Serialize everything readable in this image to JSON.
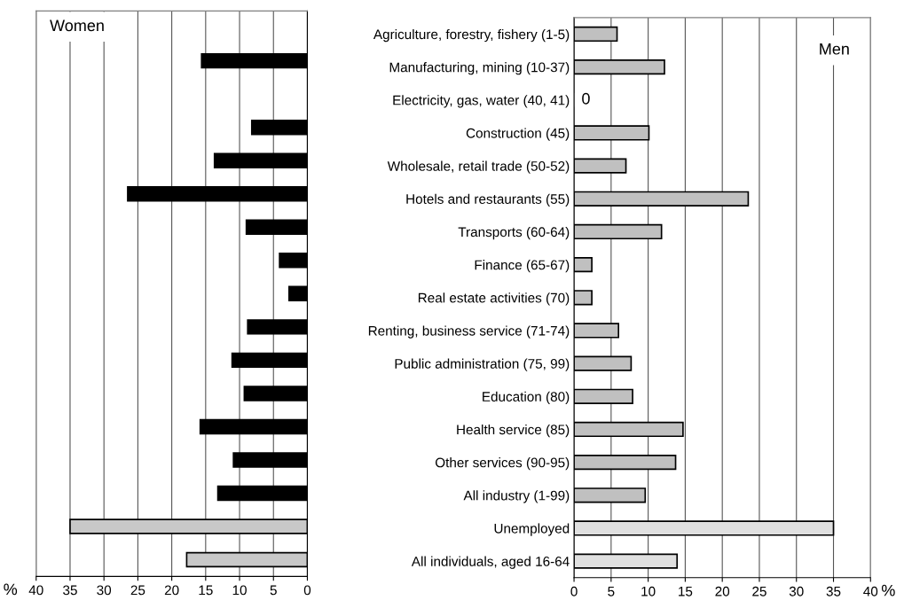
{
  "chart_data": [
    {
      "type": "bar",
      "orientation": "horizontal",
      "title": "Women",
      "xlabel": "%",
      "categories": [
        null,
        null,
        null,
        null,
        null,
        null,
        null,
        null,
        null,
        null,
        null,
        null,
        null,
        null,
        null,
        null,
        null
      ],
      "values": [
        null,
        15.6,
        null,
        8.2,
        13.7,
        26.5,
        9.0,
        4.1,
        2.7,
        8.8,
        11.1,
        9.3,
        15.8,
        10.9,
        13.2,
        35,
        17.8
      ],
      "colors": [
        "#000000",
        "#000000",
        "#000000",
        "#000000",
        "#000000",
        "#000000",
        "#000000",
        "#000000",
        "#000000",
        "#000000",
        "#000000",
        "#000000",
        "#000000",
        "#000000",
        "#000000",
        "#c8c8c8",
        "#c8c8c8"
      ],
      "xlim": [
        40,
        0
      ],
      "xticks": [
        40,
        35,
        30,
        25,
        20,
        15,
        10,
        5,
        0
      ],
      "grid": "x",
      "tick_labels": "x",
      "legend": false
    },
    {
      "type": "bar",
      "orientation": "horizontal",
      "title": "Men",
      "xlabel": "%",
      "categories": [
        "Agriculture, forestry, fishery (1-5)",
        "Manufacturing, mining (10-37)",
        "Electricity, gas, water (40, 41)",
        "Construction (45)",
        "Wholesale, retail trade (50-52)",
        "Hotels and restaurants (55)",
        "Transports (60-64)",
        "Finance (65-67)",
        "Real estate activities (70)",
        "Renting, business service (71-74)",
        "Public administration (75, 99)",
        "Education (80)",
        "Health service (85)",
        "Other services (90-95)",
        "All industry (1-99)",
        "Unemployed",
        "All individuals, aged 16-64"
      ],
      "values": [
        5.8,
        12.2,
        0,
        10.1,
        7.0,
        23.5,
        11.8,
        2.4,
        2.4,
        6.0,
        7.7,
        7.9,
        14.7,
        13.7,
        9.6,
        35,
        13.9
      ],
      "value_labels": [
        null,
        null,
        "0",
        null,
        null,
        null,
        null,
        null,
        null,
        null,
        null,
        null,
        null,
        null,
        null,
        null,
        null
      ],
      "colors": [
        "#c0c0c0",
        "#c0c0c0",
        "#c0c0c0",
        "#c0c0c0",
        "#c0c0c0",
        "#c0c0c0",
        "#c0c0c0",
        "#c0c0c0",
        "#c0c0c0",
        "#c0c0c0",
        "#c0c0c0",
        "#c0c0c0",
        "#c0c0c0",
        "#c0c0c0",
        "#c0c0c0",
        "#e0e0e0",
        "#e0e0e0"
      ],
      "xlim": [
        0,
        40
      ],
      "xticks": [
        0,
        5,
        10,
        15,
        20,
        25,
        30,
        35,
        40
      ],
      "grid": "x",
      "legend": false
    }
  ]
}
